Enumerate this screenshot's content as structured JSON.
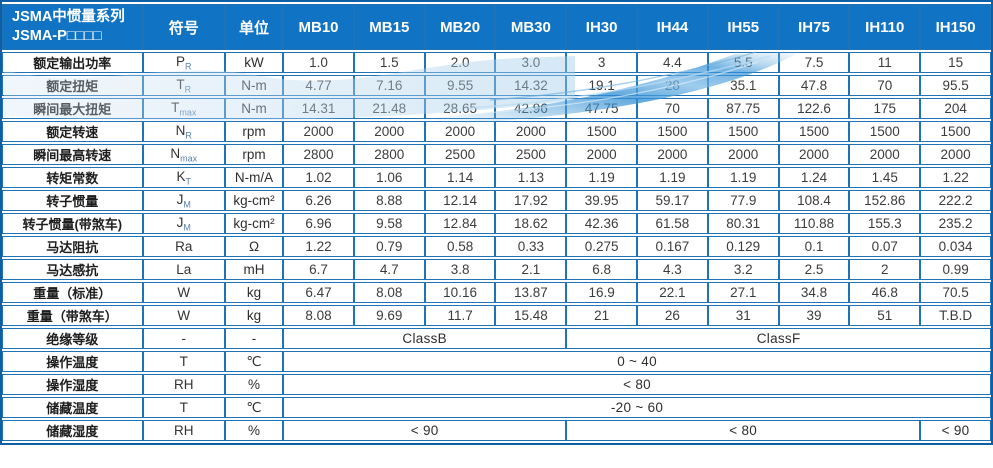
{
  "header": {
    "title_line1": "JSMA中惯量系列",
    "title_line2": "JSMA-P□□□□",
    "symbol_col": "符号",
    "unit_col": "单位",
    "models": [
      "MB10",
      "MB15",
      "MB20",
      "MB30",
      "IH30",
      "IH44",
      "IH55",
      "IH75",
      "IH110",
      "IH150"
    ]
  },
  "table": {
    "rows": [
      {
        "label": "额定输出功率",
        "sym": "P",
        "sub": "R",
        "unit": "kW",
        "values": [
          "1.0",
          "1.5",
          "2.0",
          "3.0",
          "3",
          "4.4",
          "5.5",
          "7.5",
          "11",
          "15"
        ]
      },
      {
        "label": "额定扭矩",
        "sym": "T",
        "sub": "R",
        "unit": "N-m",
        "values": [
          "4.77",
          "7.16",
          "9.55",
          "14.32",
          "19.1",
          "28",
          "35.1",
          "47.8",
          "70",
          "95.5"
        ]
      },
      {
        "label": "瞬间最大扭矩",
        "sym": "T",
        "sub": "max",
        "unit": "N-m",
        "values": [
          "14.31",
          "21.48",
          "28.65",
          "42.96",
          "47.75",
          "70",
          "87.75",
          "122.6",
          "175",
          "204"
        ]
      },
      {
        "label": "额定转速",
        "sym": "N",
        "sub": "R",
        "unit": "rpm",
        "values": [
          "2000",
          "2000",
          "2000",
          "2000",
          "1500",
          "1500",
          "1500",
          "1500",
          "1500",
          "1500"
        ]
      },
      {
        "label": "瞬间最高转速",
        "sym": "N",
        "sub": "max",
        "unit": "rpm",
        "values": [
          "2800",
          "2800",
          "2500",
          "2500",
          "2000",
          "2000",
          "2000",
          "2000",
          "2000",
          "2000"
        ]
      },
      {
        "label": "转矩常数",
        "sym": "K",
        "sub": "T",
        "unit": "N-m/A",
        "values": [
          "1.02",
          "1.06",
          "1.14",
          "1.13",
          "1.19",
          "1.19",
          "1.19",
          "1.24",
          "1.45",
          "1.22"
        ]
      },
      {
        "label": "转子惯量",
        "sym": "J",
        "sub": "M",
        "unit": "kg-cm²",
        "values": [
          "6.26",
          "8.88",
          "12.14",
          "17.92",
          "39.95",
          "59.17",
          "77.9",
          "108.4",
          "152.86",
          "222.2"
        ]
      },
      {
        "label": "转子惯量(带煞车)",
        "sym": "J",
        "sub": "M",
        "unit": "kg-cm²",
        "values": [
          "6.96",
          "9.58",
          "12.84",
          "18.62",
          "42.36",
          "61.58",
          "80.31",
          "110.88",
          "155.3",
          "235.2"
        ]
      },
      {
        "label": "马达阻抗",
        "sym": "Ra",
        "sub": "",
        "unit": "Ω",
        "values": [
          "1.22",
          "0.79",
          "0.58",
          "0.33",
          "0.275",
          "0.167",
          "0.129",
          "0.1",
          "0.07",
          "0.034"
        ]
      },
      {
        "label": "马达感抗",
        "sym": "La",
        "sub": "",
        "unit": "mH",
        "values": [
          "6.7",
          "4.7",
          "3.8",
          "2.1",
          "6.8",
          "4.3",
          "3.2",
          "2.5",
          "2",
          "0.99"
        ]
      },
      {
        "label": "重量（标准）",
        "sym": "W",
        "sub": "",
        "unit": "kg",
        "values": [
          "6.47",
          "8.08",
          "10.16",
          "13.87",
          "16.9",
          "22.1",
          "27.1",
          "34.8",
          "46.8",
          "70.5"
        ]
      },
      {
        "label": "重量（带煞车）",
        "sym": "W",
        "sub": "",
        "unit": "kg",
        "values": [
          "8.08",
          "9.69",
          "11.7",
          "15.48",
          "21",
          "26",
          "31",
          "39",
          "51",
          "T.B.D"
        ]
      },
      {
        "label": "绝缘等级",
        "sym": "-",
        "sub": "",
        "unit": "-",
        "spans": [
          {
            "text": "ClassB",
            "cols": 4
          },
          {
            "text": "ClassF",
            "cols": 6
          }
        ]
      },
      {
        "label": "操作温度",
        "sym": "T",
        "sub": "",
        "unit": "℃",
        "spans": [
          {
            "text": "0 ~ 40",
            "cols": 10
          }
        ]
      },
      {
        "label": "操作湿度",
        "sym": "RH",
        "sub": "",
        "unit": "%",
        "spans": [
          {
            "text": "< 80",
            "cols": 10
          }
        ]
      },
      {
        "label": "储藏温度",
        "sym": "T",
        "sub": "",
        "unit": "℃",
        "spans": [
          {
            "text": "-20 ~ 60",
            "cols": 10
          }
        ]
      },
      {
        "label": "储藏湿度",
        "sym": "RH",
        "sub": "",
        "unit": "%",
        "spans": [
          {
            "text": "< 90",
            "cols": 4
          },
          {
            "text": "< 80",
            "cols": 5
          },
          {
            "text": "< 90",
            "cols": 1
          }
        ]
      }
    ]
  },
  "colors": {
    "header_bg": "#1173c4",
    "border": "#2173b8",
    "outer_border": "#0e5fa5",
    "wave_strong": "#3f97d8",
    "wave_pale": "#cfe4f4",
    "text": "#3c3c3c",
    "subscript": "#5b7fae"
  }
}
